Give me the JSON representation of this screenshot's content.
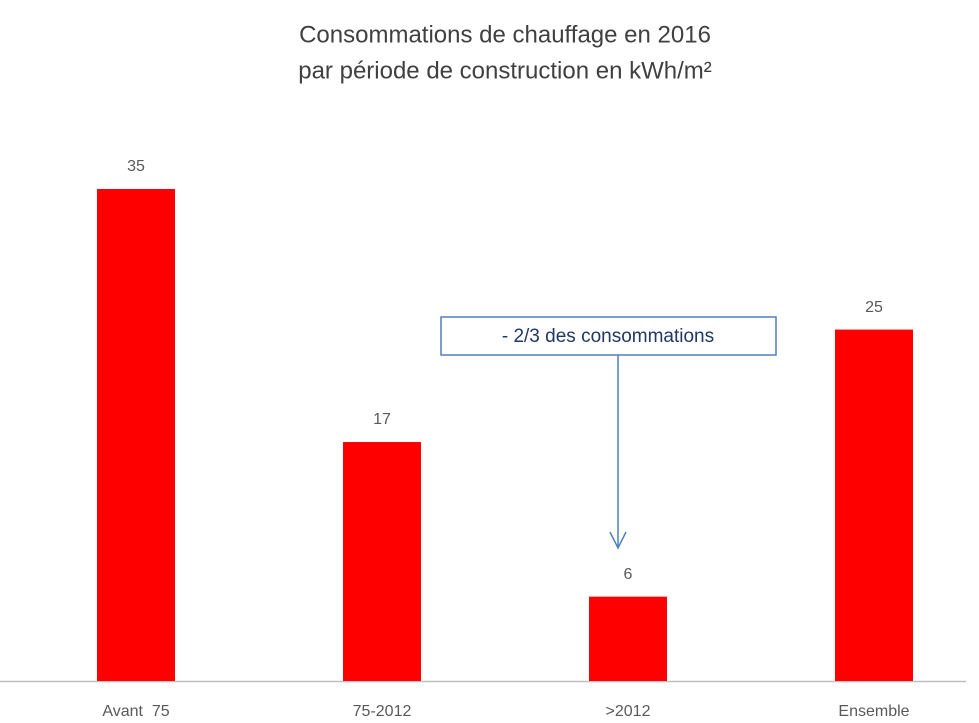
{
  "chart_data": {
    "type": "bar",
    "title": [
      "Consommations de chauffage en 2016",
      "par période de construction en kWh/m²"
    ],
    "categories": [
      "Avant  75",
      "75-2012",
      ">2012",
      "Ensemble"
    ],
    "values": [
      35,
      17,
      6,
      25
    ],
    "color": "#ff0000",
    "annotation": "- 2/3 des consommations"
  }
}
